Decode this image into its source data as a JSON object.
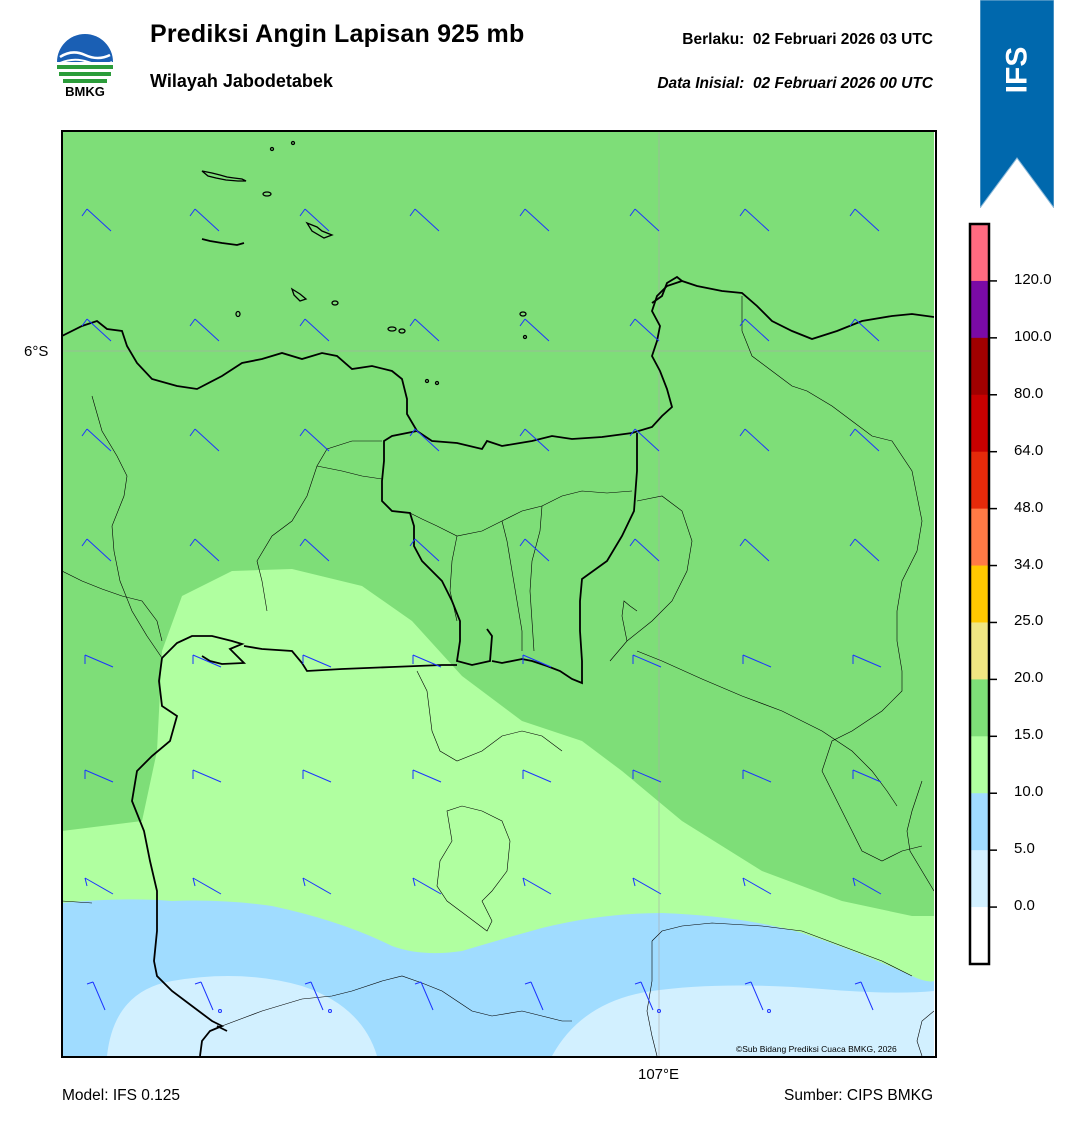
{
  "header": {
    "title": "Prediksi Angin Lapisan 925 mb",
    "subtitle": "Wilayah Jabodetabek",
    "valid_label": "Berlaku:  02 Februari 2026 03 UTC",
    "init_label": "Data Inisial:  02 Februari 2026 00 UTC"
  },
  "logo": {
    "text": "BMKG",
    "icon": "bmkg-logo-icon"
  },
  "model_badge": {
    "text": "IFS",
    "color": "#0068ad"
  },
  "map": {
    "lat_label": "6°S",
    "lon_label": "107°E",
    "copyright": "©Sub Bidang Prediksi Cuaca BMKG, 2026",
    "wind_barb_color": "#1c34ff"
  },
  "colorbar": {
    "labels": [
      "120.0",
      "100.0",
      "80.0",
      "64.0",
      "48.0",
      "34.0",
      "25.0",
      "20.0",
      "15.0",
      "10.0",
      "5.0",
      "0.0"
    ],
    "colors": [
      "#ff6b81",
      "#7a0aa6",
      "#a00000",
      "#c80000",
      "#e62a0a",
      "#ff7a45",
      "#ffc800",
      "#f0e682",
      "#7ede78",
      "#b0ffa0",
      "#a0dcff",
      "#d2f0ff",
      "#ffffff"
    ]
  },
  "footer": {
    "model": "Model: IFS 0.125",
    "source": "Sumber: CIPS BMKG"
  }
}
